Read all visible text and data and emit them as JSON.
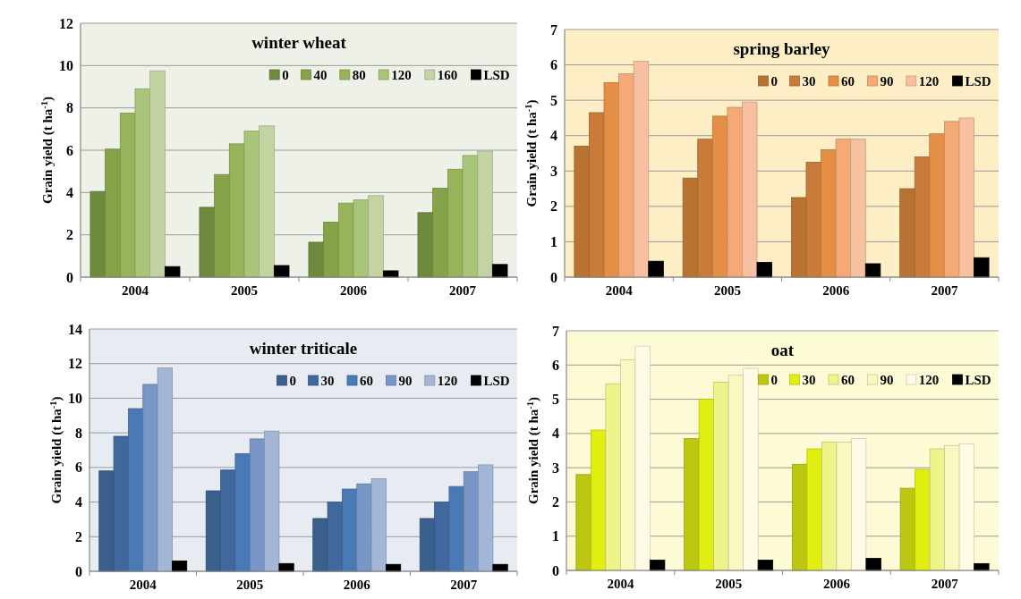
{
  "chart_data": [
    {
      "type": "bar",
      "title": "winter wheat",
      "ylabel": "Grain yield (t ha$^{-1}$)",
      "categories": [
        "2004",
        "2005",
        "2006",
        "2007"
      ],
      "ylim": [
        0,
        12
      ],
      "yticks": [
        0,
        2,
        4,
        6,
        8,
        10,
        12
      ],
      "grid": "y",
      "legend": "top right",
      "series": [
        {
          "name": "0",
          "color": "#6e8b3d",
          "values": [
            4.05,
            3.3,
            1.65,
            3.05
          ]
        },
        {
          "name": "40",
          "color": "#86a34a",
          "values": [
            6.05,
            4.85,
            2.6,
            4.2
          ]
        },
        {
          "name": "80",
          "color": "#98b45a",
          "values": [
            7.75,
            6.3,
            3.5,
            5.1
          ]
        },
        {
          "name": "120",
          "color": "#a9c57a",
          "values": [
            8.9,
            6.9,
            3.65,
            5.75
          ]
        },
        {
          "name": "160",
          "color": "#c3d4a2",
          "values": [
            9.75,
            7.15,
            3.85,
            5.95
          ]
        },
        {
          "name": "LSD",
          "color": "#000000",
          "values": [
            0.5,
            0.55,
            0.3,
            0.6
          ]
        }
      ]
    },
    {
      "type": "bar",
      "title": "spring barley",
      "ylabel": "Grain yield (t ha$^{-1}$)",
      "categories": [
        "2004",
        "2005",
        "2006",
        "2007"
      ],
      "ylim": [
        0,
        7
      ],
      "yticks": [
        0,
        1,
        2,
        3,
        4,
        5,
        6,
        7
      ],
      "grid": "y",
      "legend": "top right",
      "series": [
        {
          "name": "0",
          "color": "#b87333",
          "values": [
            3.7,
            2.8,
            2.25,
            2.5
          ]
        },
        {
          "name": "30",
          "color": "#c97b3a",
          "values": [
            4.65,
            3.9,
            3.25,
            3.4
          ]
        },
        {
          "name": "60",
          "color": "#e48f45",
          "values": [
            5.5,
            4.55,
            3.6,
            4.05
          ]
        },
        {
          "name": "90",
          "color": "#f4a977",
          "values": [
            5.75,
            4.8,
            3.9,
            4.4
          ]
        },
        {
          "name": "120",
          "color": "#f7c0a0",
          "values": [
            6.1,
            4.95,
            3.9,
            4.5
          ]
        },
        {
          "name": "LSD",
          "color": "#000000",
          "values": [
            0.45,
            0.42,
            0.38,
            0.55
          ]
        }
      ]
    },
    {
      "type": "bar",
      "title": "winter triticale",
      "ylabel": "Grain yield (t ha$^{-1}$)",
      "categories": [
        "2004",
        "2005",
        "2006",
        "2007"
      ],
      "ylim": [
        0,
        14
      ],
      "yticks": [
        0,
        2,
        4,
        6,
        8,
        10,
        12,
        14
      ],
      "grid": "y",
      "legend": "top right",
      "series": [
        {
          "name": "0",
          "color": "#3a5f8d",
          "values": [
            5.8,
            4.65,
            3.05,
            3.05
          ]
        },
        {
          "name": "30",
          "color": "#40689e",
          "values": [
            7.8,
            5.85,
            4.0,
            4.0
          ]
        },
        {
          "name": "60",
          "color": "#4a7ab5",
          "values": [
            9.4,
            6.8,
            4.75,
            4.9
          ]
        },
        {
          "name": "90",
          "color": "#7896c6",
          "values": [
            10.8,
            7.65,
            5.05,
            5.75
          ]
        },
        {
          "name": "120",
          "color": "#a3b6d6",
          "values": [
            11.75,
            8.1,
            5.35,
            6.15
          ]
        },
        {
          "name": "LSD",
          "color": "#000000",
          "values": [
            0.6,
            0.45,
            0.4,
            0.4
          ]
        }
      ]
    },
    {
      "type": "bar",
      "title": "oat",
      "ylabel": "Grain yield (t ha$^{-1}$)",
      "categories": [
        "2004",
        "2005",
        "2006",
        "2007"
      ],
      "ylim": [
        0,
        7
      ],
      "yticks": [
        0,
        1,
        2,
        3,
        4,
        5,
        6,
        7
      ],
      "grid": "y",
      "legend": "top right",
      "series": [
        {
          "name": "0",
          "color": "#bcc712",
          "values": [
            2.8,
            3.85,
            3.1,
            2.4
          ]
        },
        {
          "name": "30",
          "color": "#e0ef10",
          "values": [
            4.1,
            5.0,
            3.55,
            2.95
          ]
        },
        {
          "name": "60",
          "color": "#eef38a",
          "values": [
            5.45,
            5.5,
            3.75,
            3.55
          ]
        },
        {
          "name": "90",
          "color": "#f8f8c0",
          "values": [
            6.15,
            5.7,
            3.75,
            3.65
          ]
        },
        {
          "name": "120",
          "color": "#fffbe6",
          "values": [
            6.55,
            5.9,
            3.85,
            3.7
          ]
        },
        {
          "name": "LSD",
          "color": "#000000",
          "values": [
            0.3,
            0.3,
            0.35,
            0.2
          ]
        }
      ]
    }
  ]
}
